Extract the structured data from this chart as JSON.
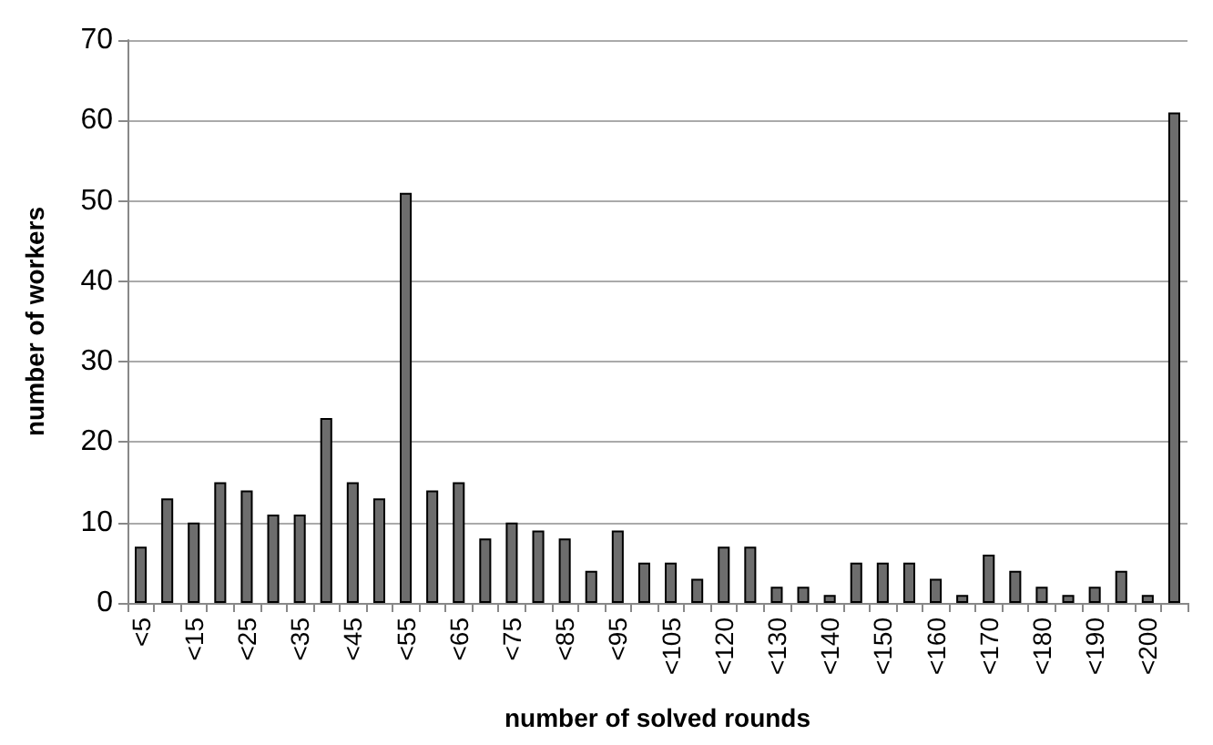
{
  "chart_data": {
    "type": "bar",
    "xlabel": "number of solved rounds",
    "ylabel": "number of workers",
    "categories": [
      "<5",
      null,
      "<15",
      null,
      "<25",
      null,
      "<35",
      null,
      "<45",
      null,
      "<55",
      null,
      "<65",
      null,
      "<75",
      null,
      "<85",
      null,
      "<95",
      null,
      "<105",
      null,
      "<120",
      null,
      "<130",
      null,
      "<140",
      null,
      "<150",
      null,
      "<160",
      null,
      "<170",
      null,
      "<180",
      null,
      "<190",
      null,
      "<200",
      null
    ],
    "values": [
      7,
      13,
      10,
      15,
      14,
      11,
      11,
      23,
      15,
      13,
      51,
      14,
      15,
      8,
      10,
      9,
      8,
      4,
      9,
      5,
      5,
      3,
      7,
      7,
      2,
      2,
      1,
      5,
      5,
      5,
      3,
      1,
      6,
      4,
      2,
      1,
      2,
      4,
      1,
      61
    ],
    "color": "#6d6d6d",
    "ylim": [
      0,
      70
    ],
    "yticks": [
      0,
      10,
      20,
      30,
      40,
      50,
      60,
      70
    ],
    "grid": "y"
  }
}
